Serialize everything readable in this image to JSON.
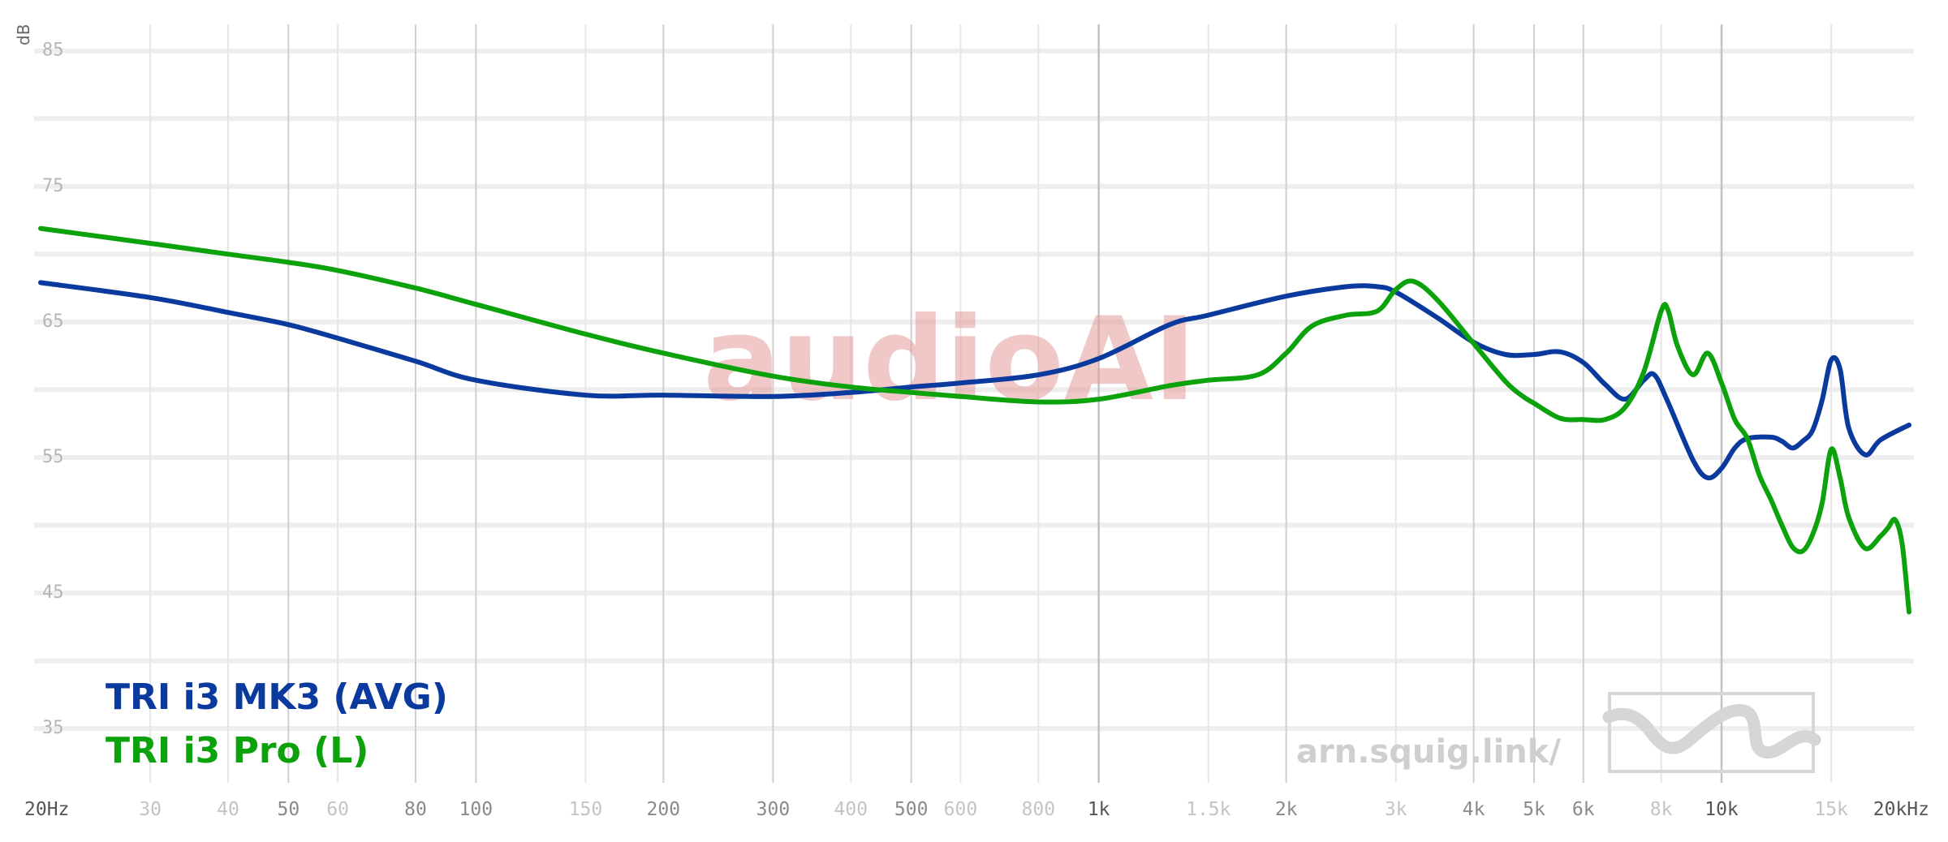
{
  "chart_data": {
    "type": "line",
    "ylabel": "dB",
    "ylim": [
      31,
      86
    ],
    "xlim": [
      20,
      20000
    ],
    "x_scale": "log",
    "y_ticks": [
      {
        "value": 85,
        "label": "85"
      },
      {
        "value": 75,
        "label": "75"
      },
      {
        "value": 65,
        "label": "65"
      },
      {
        "value": 55,
        "label": "55"
      },
      {
        "value": 45,
        "label": "45"
      },
      {
        "value": 35,
        "label": "35"
      }
    ],
    "x_ticks": [
      {
        "value": 20,
        "label": "20Hz",
        "level": "major"
      },
      {
        "value": 30,
        "label": "30",
        "level": "light"
      },
      {
        "value": 40,
        "label": "40",
        "level": "light"
      },
      {
        "value": 50,
        "label": "50",
        "level": "mid"
      },
      {
        "value": 60,
        "label": "60",
        "level": "light"
      },
      {
        "value": 80,
        "label": "80",
        "level": "mid"
      },
      {
        "value": 100,
        "label": "100",
        "level": "mid"
      },
      {
        "value": 150,
        "label": "150",
        "level": "light"
      },
      {
        "value": 200,
        "label": "200",
        "level": "mid"
      },
      {
        "value": 300,
        "label": "300",
        "level": "mid"
      },
      {
        "value": 400,
        "label": "400",
        "level": "light"
      },
      {
        "value": 500,
        "label": "500",
        "level": "mid"
      },
      {
        "value": 600,
        "label": "600",
        "level": "light"
      },
      {
        "value": 800,
        "label": "800",
        "level": "light"
      },
      {
        "value": 1000,
        "label": "1k",
        "level": "major"
      },
      {
        "value": 1500,
        "label": "1.5k",
        "level": "light"
      },
      {
        "value": 2000,
        "label": "2k",
        "level": "mid"
      },
      {
        "value": 3000,
        "label": "3k",
        "level": "light"
      },
      {
        "value": 4000,
        "label": "4k",
        "level": "mid"
      },
      {
        "value": 5000,
        "label": "5k",
        "level": "mid"
      },
      {
        "value": 6000,
        "label": "6k",
        "level": "mid"
      },
      {
        "value": 8000,
        "label": "8k",
        "level": "light"
      },
      {
        "value": 10000,
        "label": "10k",
        "level": "major"
      },
      {
        "value": 15000,
        "label": "15k",
        "level": "light"
      },
      {
        "value": 20000,
        "label": "20kHz",
        "level": "major"
      }
    ],
    "series": [
      {
        "name": "TRI i3 MK3 (AVG)",
        "color": "#0b3a9e",
        "x": [
          20,
          30,
          40,
          50,
          60,
          80,
          100,
          150,
          200,
          300,
          400,
          500,
          600,
          800,
          1000,
          1300,
          1500,
          2000,
          2500,
          2800,
          3000,
          3500,
          4000,
          4500,
          5000,
          5500,
          6000,
          6500,
          7000,
          7500,
          7800,
          8200,
          9000,
          9500,
          10000,
          10500,
          11000,
          12000,
          12500,
          13000,
          13500,
          14000,
          14500,
          15000,
          15500,
          16000,
          17000,
          18000,
          20000
        ],
        "y": [
          67.9,
          66.8,
          65.7,
          64.8,
          63.8,
          62.1,
          60.7,
          59.6,
          59.6,
          59.5,
          59.8,
          60.2,
          60.5,
          61.1,
          62.3,
          64.8,
          65.5,
          66.9,
          67.6,
          67.6,
          67.2,
          65.3,
          63.5,
          62.6,
          62.6,
          62.8,
          62.0,
          60.4,
          59.3,
          60.7,
          61.1,
          59.1,
          54.8,
          53.5,
          54.2,
          55.7,
          56.4,
          56.5,
          56.2,
          55.7,
          56.2,
          57.0,
          59.2,
          62.2,
          61.5,
          57.2,
          55.2,
          56.3,
          57.4
        ]
      },
      {
        "name": "TRI i3 Pro (L)",
        "color": "#0ca20c",
        "x": [
          20,
          30,
          40,
          50,
          60,
          80,
          100,
          150,
          200,
          300,
          400,
          500,
          600,
          800,
          1000,
          1300,
          1500,
          1800,
          2000,
          2200,
          2500,
          2800,
          3000,
          3200,
          3500,
          4000,
          4500,
          4800,
          5000,
          5500,
          6000,
          6500,
          7000,
          7500,
          8000,
          8200,
          8500,
          9000,
          9500,
          10000,
          10500,
          11000,
          11500,
          12000,
          12500,
          13000,
          13500,
          14000,
          14500,
          15000,
          15500,
          16000,
          17000,
          18000,
          18500,
          19000,
          19500,
          20000
        ],
        "y": [
          71.9,
          70.8,
          70.0,
          69.4,
          68.8,
          67.5,
          66.3,
          64.1,
          62.7,
          61.0,
          60.2,
          59.8,
          59.5,
          59.1,
          59.3,
          60.3,
          60.7,
          61.1,
          62.7,
          64.7,
          65.5,
          65.8,
          67.4,
          68.0,
          66.6,
          63.4,
          60.6,
          59.5,
          59.0,
          57.9,
          57.8,
          57.8,
          58.7,
          61.3,
          65.8,
          65.9,
          63.2,
          61.1,
          62.7,
          60.5,
          57.8,
          56.4,
          53.7,
          51.9,
          50.0,
          48.4,
          48.1,
          49.3,
          51.6,
          55.6,
          53.5,
          50.6,
          48.3,
          49.2,
          49.8,
          50.4,
          48.6,
          43.6
        ]
      }
    ]
  },
  "legend": {
    "items": [
      {
        "label": "TRI i3 MK3 (AVG)",
        "color": "#0b3a9e"
      },
      {
        "label": "TRI i3 Pro (L)",
        "color": "#0ca20c"
      }
    ]
  },
  "watermark": {
    "text": "audioAI"
  },
  "site_label": {
    "text": "arn.squig.link/"
  },
  "logo": {
    "icon": "squiggle-logo-icon"
  }
}
